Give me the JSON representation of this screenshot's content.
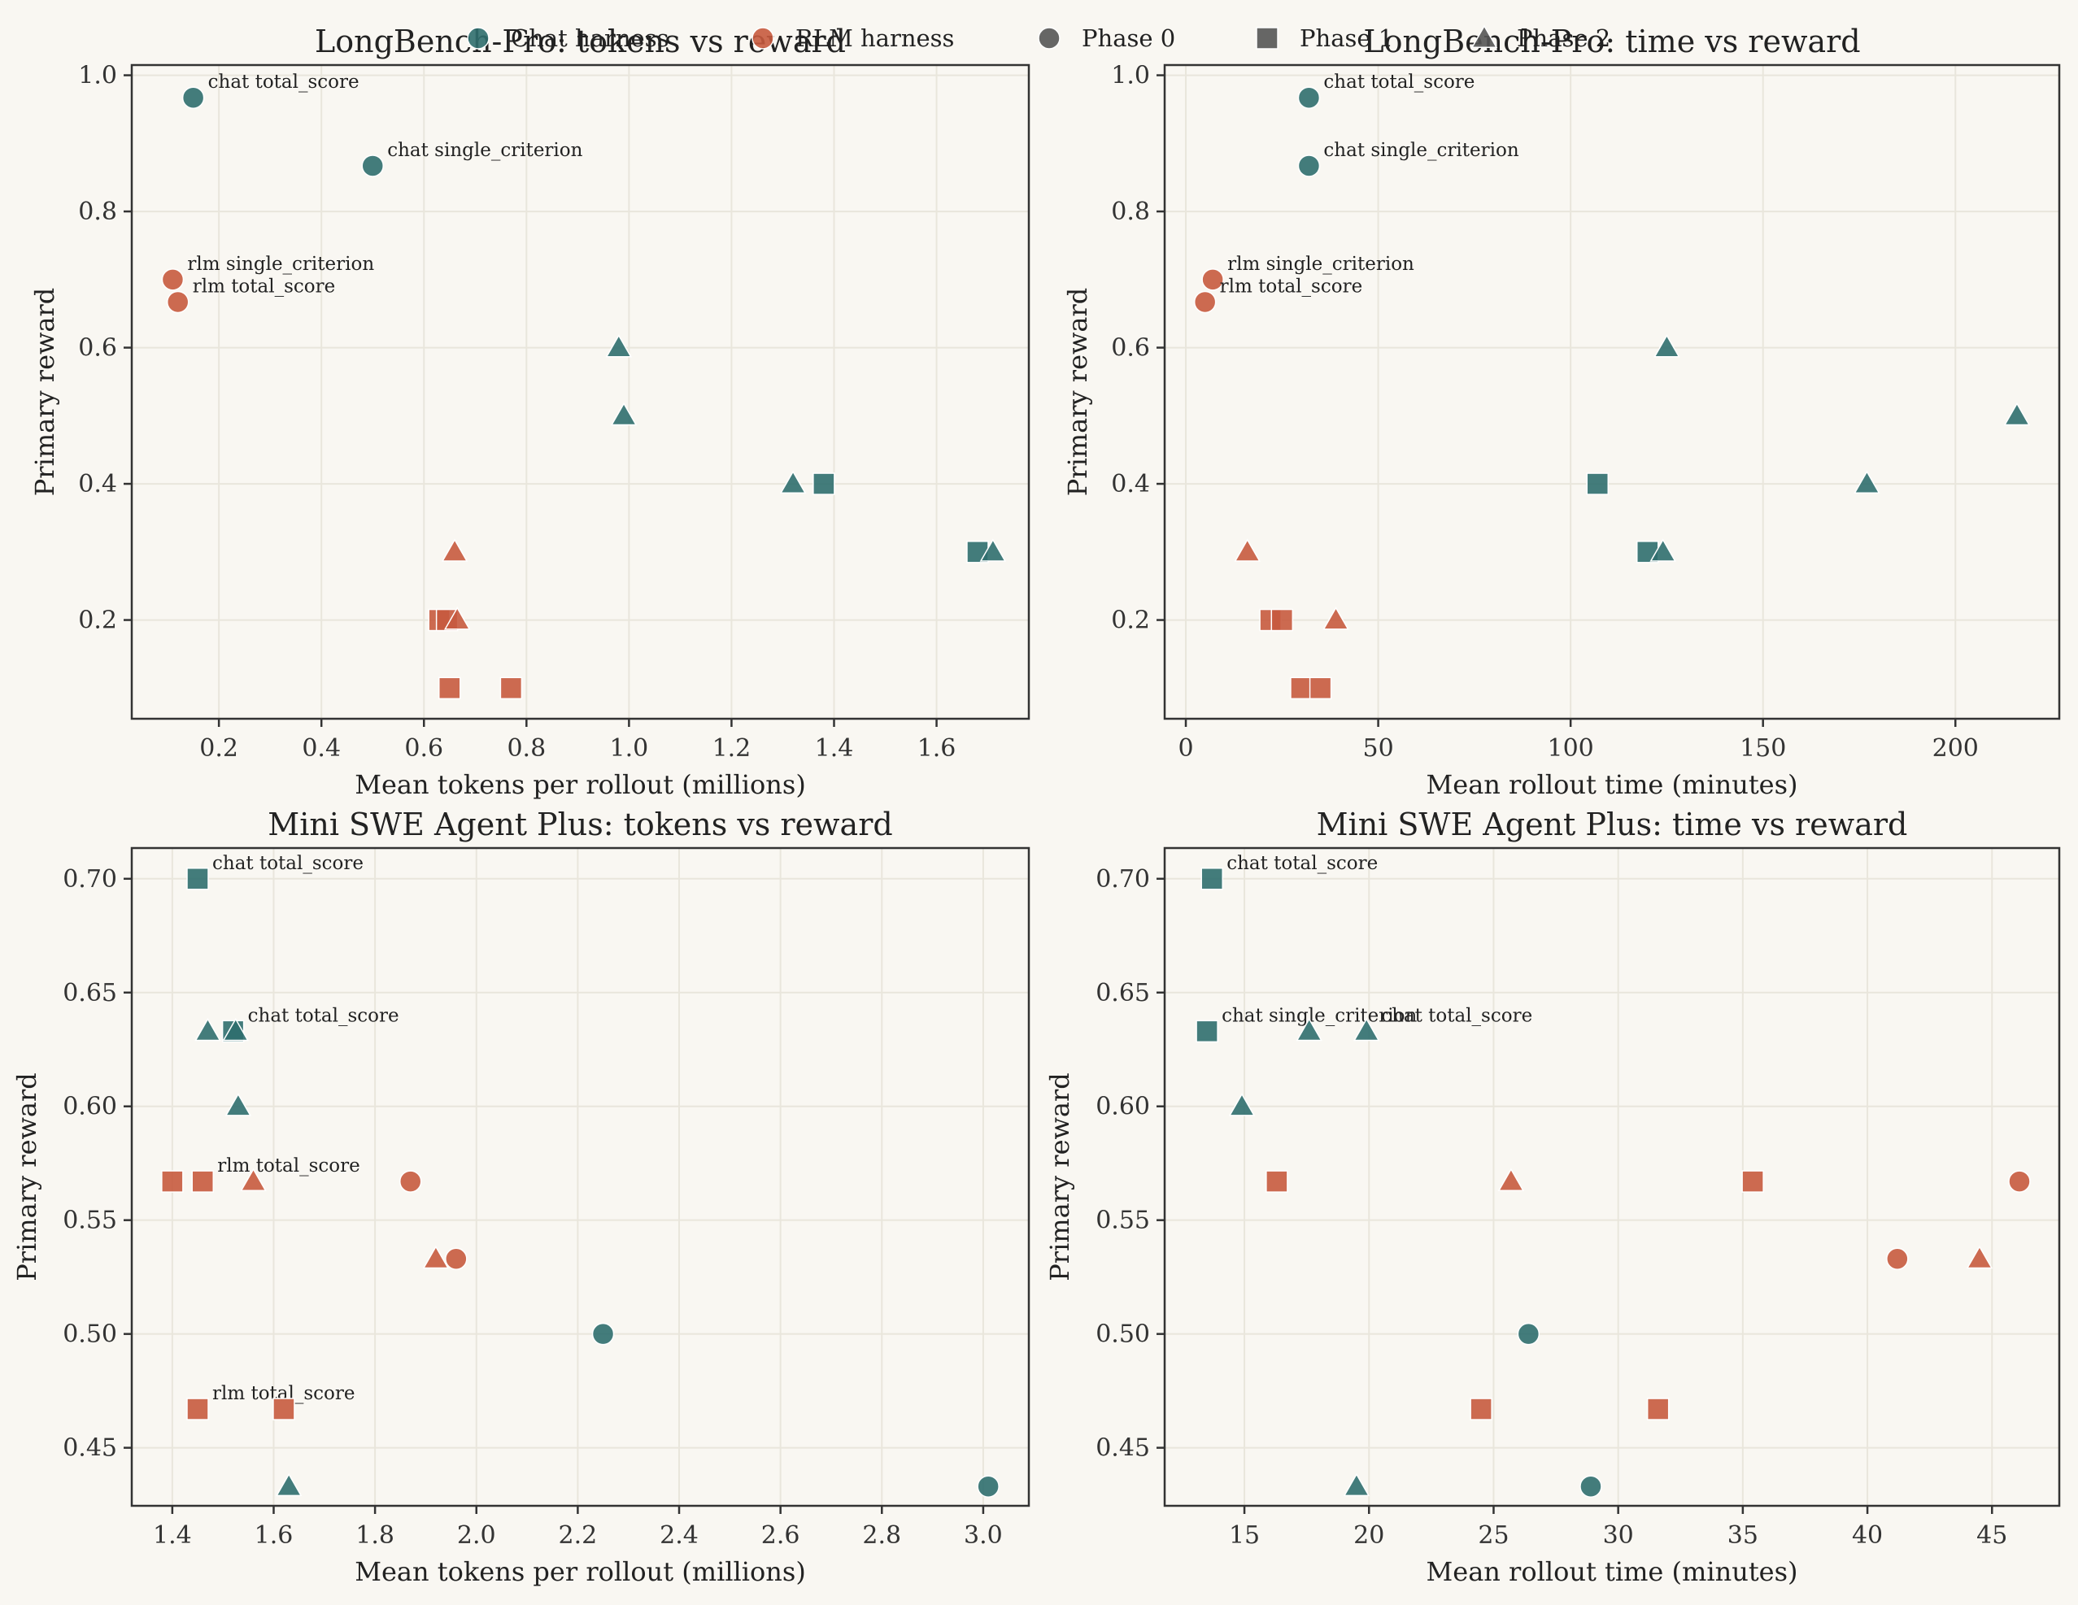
{
  "legend": {
    "items": [
      {
        "label": "Chat harness",
        "marker": "circle",
        "color": "#2f6e6e"
      },
      {
        "label": "RLM harness",
        "marker": "circle",
        "color": "#c65a3e"
      },
      {
        "label": "Phase 0",
        "marker": "circle",
        "color": "#555555"
      },
      {
        "label": "Phase 1",
        "marker": "square",
        "color": "#555555"
      },
      {
        "label": "Phase 2",
        "marker": "triangle",
        "color": "#555555"
      }
    ]
  },
  "colors": {
    "chat": "#2f6e6e",
    "rlm": "#c65a3e",
    "background": "#f9f7f2",
    "grid": "#e9e6dc",
    "axis": "#333333"
  },
  "chart_data": [
    {
      "type": "scatter",
      "title": "LongBench-Pro: tokens vs reward",
      "xlabel": "Mean tokens per rollout (millions)",
      "ylabel": "Primary reward",
      "xlim": [
        0.03,
        1.78
      ],
      "ylim": [
        0.055,
        1.015
      ],
      "xticks": [
        "0.2",
        "0.4",
        "0.6",
        "0.8",
        "1.0",
        "1.2",
        "1.4",
        "1.6"
      ],
      "yticks": [
        "0.2",
        "0.4",
        "0.6",
        "0.8",
        "1.0"
      ],
      "grid": true,
      "points": [
        {
          "harness": "chat",
          "phase": 0,
          "x": 0.15,
          "y": 0.967,
          "label": "chat total_score"
        },
        {
          "harness": "chat",
          "phase": 0,
          "x": 0.5,
          "y": 0.867,
          "label": "chat single_criterion"
        },
        {
          "harness": "rlm",
          "phase": 0,
          "x": 0.11,
          "y": 0.7,
          "label": "rlm single_criterion"
        },
        {
          "harness": "rlm",
          "phase": 0,
          "x": 0.12,
          "y": 0.667,
          "label": "rlm total_score"
        },
        {
          "harness": "chat",
          "phase": 2,
          "x": 0.98,
          "y": 0.6
        },
        {
          "harness": "chat",
          "phase": 2,
          "x": 0.99,
          "y": 0.5
        },
        {
          "harness": "chat",
          "phase": 2,
          "x": 1.32,
          "y": 0.4
        },
        {
          "harness": "chat",
          "phase": 1,
          "x": 1.38,
          "y": 0.4
        },
        {
          "harness": "chat",
          "phase": 1,
          "x": 1.68,
          "y": 0.3
        },
        {
          "harness": "chat",
          "phase": 2,
          "x": 1.71,
          "y": 0.3
        },
        {
          "harness": "rlm",
          "phase": 2,
          "x": 0.66,
          "y": 0.3
        },
        {
          "harness": "rlm",
          "phase": 1,
          "x": 0.63,
          "y": 0.2
        },
        {
          "harness": "rlm",
          "phase": 1,
          "x": 0.645,
          "y": 0.2
        },
        {
          "harness": "rlm",
          "phase": 2,
          "x": 0.665,
          "y": 0.2
        },
        {
          "harness": "rlm",
          "phase": 1,
          "x": 0.65,
          "y": 0.1
        },
        {
          "harness": "rlm",
          "phase": 1,
          "x": 0.77,
          "y": 0.1
        }
      ]
    },
    {
      "type": "scatter",
      "title": "LongBench-Pro: time vs reward",
      "xlabel": "Mean rollout time (minutes)",
      "ylabel": "Primary reward",
      "xlim": [
        -5.5,
        227
      ],
      "ylim": [
        0.055,
        1.015
      ],
      "xticks": [
        "0",
        "50",
        "100",
        "150",
        "200"
      ],
      "yticks": [
        "0.2",
        "0.4",
        "0.6",
        "0.8",
        "1.0"
      ],
      "grid": true,
      "points": [
        {
          "harness": "chat",
          "phase": 0,
          "x": 32,
          "y": 0.967,
          "label": "chat total_score"
        },
        {
          "harness": "chat",
          "phase": 0,
          "x": 32,
          "y": 0.867,
          "label": "chat single_criterion"
        },
        {
          "harness": "rlm",
          "phase": 0,
          "x": 7,
          "y": 0.7,
          "label": "rlm single_criterion"
        },
        {
          "harness": "rlm",
          "phase": 0,
          "x": 5,
          "y": 0.667,
          "label": "rlm total_score"
        },
        {
          "harness": "chat",
          "phase": 2,
          "x": 125,
          "y": 0.6
        },
        {
          "harness": "chat",
          "phase": 2,
          "x": 216,
          "y": 0.5
        },
        {
          "harness": "chat",
          "phase": 2,
          "x": 177,
          "y": 0.4
        },
        {
          "harness": "chat",
          "phase": 1,
          "x": 107,
          "y": 0.4
        },
        {
          "harness": "chat",
          "phase": 1,
          "x": 120,
          "y": 0.3
        },
        {
          "harness": "chat",
          "phase": 2,
          "x": 124,
          "y": 0.3
        },
        {
          "harness": "rlm",
          "phase": 2,
          "x": 16,
          "y": 0.3
        },
        {
          "harness": "rlm",
          "phase": 1,
          "x": 22,
          "y": 0.2
        },
        {
          "harness": "rlm",
          "phase": 1,
          "x": 25,
          "y": 0.2
        },
        {
          "harness": "rlm",
          "phase": 2,
          "x": 39,
          "y": 0.2
        },
        {
          "harness": "rlm",
          "phase": 1,
          "x": 30,
          "y": 0.1
        },
        {
          "harness": "rlm",
          "phase": 1,
          "x": 35,
          "y": 0.1
        }
      ]
    },
    {
      "type": "scatter",
      "title": "Mini SWE Agent Plus: tokens vs reward",
      "xlabel": "Mean tokens per rollout (millions)",
      "ylabel": "Primary reward",
      "xlim": [
        1.32,
        3.09
      ],
      "ylim": [
        0.4245,
        0.7135
      ],
      "xticks": [
        "1.4",
        "1.6",
        "1.8",
        "2.0",
        "2.2",
        "2.4",
        "2.6",
        "2.8",
        "3.0"
      ],
      "yticks": [
        "0.45",
        "0.50",
        "0.55",
        "0.60",
        "0.65",
        "0.70"
      ],
      "grid": true,
      "points": [
        {
          "harness": "chat",
          "phase": 1,
          "x": 1.45,
          "y": 0.7,
          "label": "chat total_score"
        },
        {
          "harness": "chat",
          "phase": 2,
          "x": 1.47,
          "y": 0.633
        },
        {
          "harness": "chat",
          "phase": 1,
          "x": 1.52,
          "y": 0.633,
          "label": "chat total_score"
        },
        {
          "harness": "chat",
          "phase": 2,
          "x": 1.525,
          "y": 0.633
        },
        {
          "harness": "chat",
          "phase": 2,
          "x": 1.53,
          "y": 0.6
        },
        {
          "harness": "rlm",
          "phase": 1,
          "x": 1.4,
          "y": 0.567
        },
        {
          "harness": "rlm",
          "phase": 1,
          "x": 1.46,
          "y": 0.567,
          "label": "rlm total_score"
        },
        {
          "harness": "rlm",
          "phase": 2,
          "x": 1.56,
          "y": 0.567
        },
        {
          "harness": "rlm",
          "phase": 0,
          "x": 1.87,
          "y": 0.567
        },
        {
          "harness": "rlm",
          "phase": 2,
          "x": 1.92,
          "y": 0.533
        },
        {
          "harness": "rlm",
          "phase": 0,
          "x": 1.96,
          "y": 0.533
        },
        {
          "harness": "chat",
          "phase": 0,
          "x": 2.25,
          "y": 0.5
        },
        {
          "harness": "rlm",
          "phase": 1,
          "x": 1.45,
          "y": 0.467,
          "label": "rlm total_score"
        },
        {
          "harness": "rlm",
          "phase": 1,
          "x": 1.62,
          "y": 0.467
        },
        {
          "harness": "chat",
          "phase": 2,
          "x": 1.63,
          "y": 0.433
        },
        {
          "harness": "chat",
          "phase": 0,
          "x": 3.01,
          "y": 0.433
        }
      ]
    },
    {
      "type": "scatter",
      "title": "Mini SWE Agent Plus: time vs reward",
      "xlabel": "Mean rollout time (minutes)",
      "ylabel": "Primary reward",
      "xlim": [
        11.8,
        47.7
      ],
      "ylim": [
        0.4245,
        0.7135
      ],
      "xticks": [
        "15",
        "20",
        "25",
        "30",
        "35",
        "40",
        "45"
      ],
      "yticks": [
        "0.45",
        "0.50",
        "0.55",
        "0.60",
        "0.65",
        "0.70"
      ],
      "grid": true,
      "points": [
        {
          "harness": "chat",
          "phase": 1,
          "x": 13.7,
          "y": 0.7,
          "label": "chat total_score"
        },
        {
          "harness": "chat",
          "phase": 1,
          "x": 13.5,
          "y": 0.633,
          "label": "chat single_criterion"
        },
        {
          "harness": "chat",
          "phase": 2,
          "x": 17.6,
          "y": 0.633
        },
        {
          "harness": "chat",
          "phase": 2,
          "x": 19.9,
          "y": 0.633,
          "label": "chat total_score"
        },
        {
          "harness": "chat",
          "phase": 2,
          "x": 14.9,
          "y": 0.6
        },
        {
          "harness": "rlm",
          "phase": 1,
          "x": 16.3,
          "y": 0.567
        },
        {
          "harness": "rlm",
          "phase": 2,
          "x": 25.7,
          "y": 0.567
        },
        {
          "harness": "rlm",
          "phase": 1,
          "x": 35.4,
          "y": 0.567
        },
        {
          "harness": "rlm",
          "phase": 0,
          "x": 46.1,
          "y": 0.567
        },
        {
          "harness": "rlm",
          "phase": 0,
          "x": 41.2,
          "y": 0.533
        },
        {
          "harness": "rlm",
          "phase": 2,
          "x": 44.5,
          "y": 0.533
        },
        {
          "harness": "chat",
          "phase": 0,
          "x": 26.4,
          "y": 0.5
        },
        {
          "harness": "rlm",
          "phase": 1,
          "x": 24.5,
          "y": 0.467
        },
        {
          "harness": "rlm",
          "phase": 1,
          "x": 31.6,
          "y": 0.467
        },
        {
          "harness": "chat",
          "phase": 2,
          "x": 19.5,
          "y": 0.433
        },
        {
          "harness": "chat",
          "phase": 0,
          "x": 28.9,
          "y": 0.433
        }
      ]
    }
  ]
}
